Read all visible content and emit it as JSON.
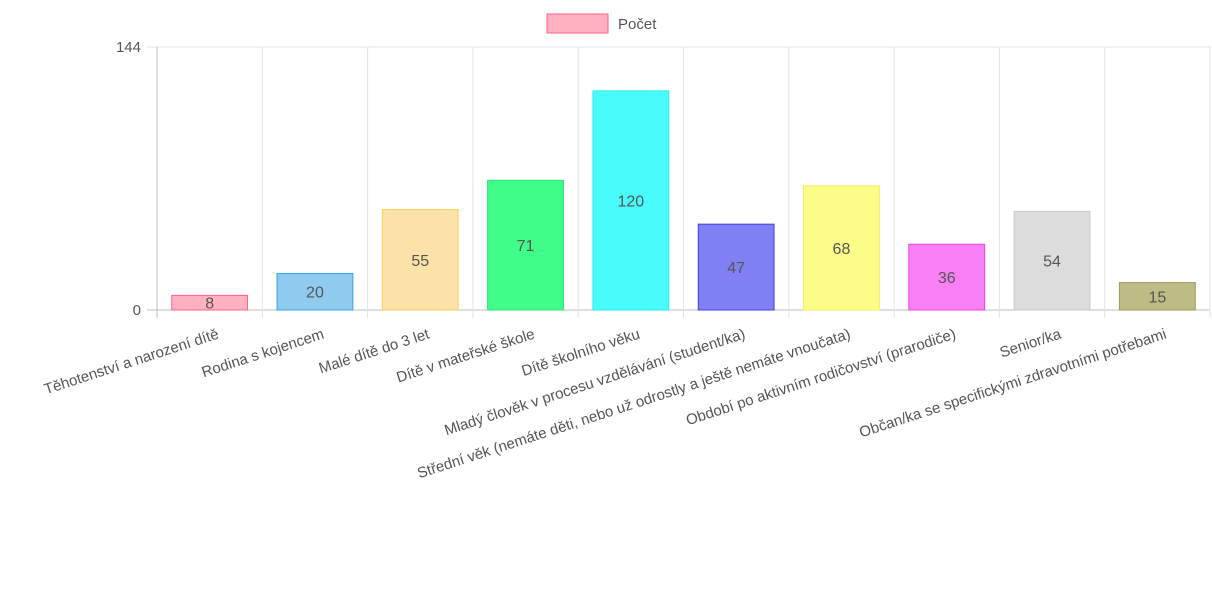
{
  "chart_data": {
    "type": "bar",
    "legend": {
      "label": "Počet",
      "color": "#ffb1c1",
      "border_color": "#ff6384",
      "position": "top"
    },
    "categories": [
      "Těhotenství a narození dítě",
      "Rodina s kojencem",
      "Malé dítě do 3 let",
      "Dítě v mateřské škole",
      "Dítě školního věku",
      "Mladý člověk v procesu vzdělávání (student/ka)",
      "Střední věk (nemáte děti, nebo už odrostly a ještě nemáte vnoučata)",
      "Období po aktivním rodičovství (prarodiče)",
      "Senior/ka",
      "Občan/ka se specifickými zdravotními potřebami"
    ],
    "series": [
      {
        "name": "Počet",
        "values": [
          8,
          20,
          55,
          71,
          120,
          47,
          68,
          36,
          54,
          15
        ]
      }
    ],
    "colors": [
      "#ffb1c1",
      "#8ecbee",
      "#fce1a8",
      "#40fc88",
      "#48fcfc",
      "#8080f4",
      "#fcfc88",
      "#f880f4",
      "#dcdcdc",
      "#bcbc84"
    ],
    "border_colors": [
      "#ff6384",
      "#36a2eb",
      "#ffce56",
      "#2ee072",
      "#2ee8e8",
      "#4040e0",
      "#f0f060",
      "#f040e8",
      "#c8c8c8",
      "#9a9a5a"
    ],
    "y_ticks": [
      "0",
      "144"
    ],
    "ylim": [
      0,
      144
    ],
    "grid": true,
    "data_labels": true
  }
}
